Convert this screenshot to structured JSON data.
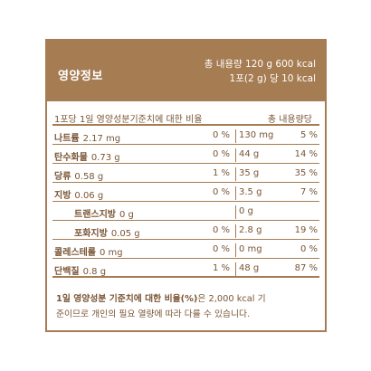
{
  "header": {
    "title": "영양정보",
    "total_line": "총 내용량 120 g 600 kcal",
    "serving_line": "1포(2 g) 당 10 kcal"
  },
  "table_header": {
    "left": "1포당  1일 영양성분기준치에 대한 비율",
    "right": "총 내용량당"
  },
  "rows": [
    {
      "name": "나트륨",
      "value": "2.17 mg",
      "pct_serving": "0 %",
      "total_amount": "130 mg",
      "pct_total": "5 %"
    },
    {
      "name": "탄수화물",
      "value": "0.73 g",
      "pct_serving": "0 %",
      "total_amount": "44 g",
      "pct_total": "14 %"
    },
    {
      "name": "당류",
      "value": "0.58 g",
      "pct_serving": "1 %",
      "total_amount": "35 g",
      "pct_total": "35 %"
    },
    {
      "name": "지방",
      "value": "0.06 g",
      "pct_serving": "0 %",
      "total_amount": "3.5 g",
      "pct_total": "7 %"
    },
    {
      "name": "트랜스지방",
      "value": "0 g",
      "pct_serving": "",
      "total_amount": "0 g",
      "pct_total": ""
    },
    {
      "name": "포화지방",
      "value": "0.05 g",
      "pct_serving": "0 %",
      "total_amount": "2.8 g",
      "pct_total": "19 %"
    },
    {
      "name": "콜레스테롤",
      "value": "0 mg",
      "pct_serving": "0 %",
      "total_amount": "0 mg",
      "pct_total": "0 %"
    },
    {
      "name": "단백질",
      "value": "0.8 g",
      "pct_serving": "1 %",
      "total_amount": "48 g",
      "pct_total": "87 %"
    }
  ],
  "footnote": {
    "line1_prefix": "1일 영양성분 기준치에 대한 비율(%)",
    "line1_suffix": "은 2,000 kcal 기",
    "line2": "준이므로 개인의 필요 열량에 따라 다를 수 있습니다."
  },
  "colors": {
    "brand": "#a67c52",
    "text": "#7a5535",
    "background": "#ffffff"
  }
}
